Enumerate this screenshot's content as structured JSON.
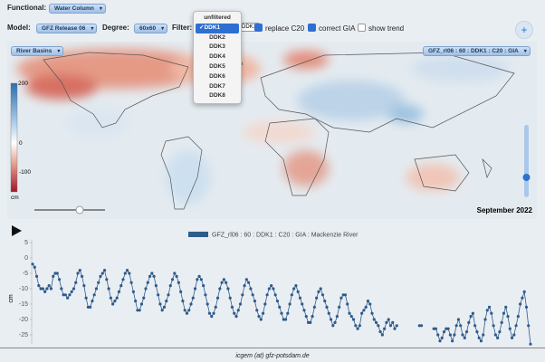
{
  "controls": {
    "functional_label": "Functional:",
    "functional_value": "Water Column",
    "model_label": "Model:",
    "model_value": "GFZ Release 06",
    "degree_label": "Degree:",
    "degree_value": "60x60",
    "filter_label": "Filter:",
    "filter_options": [
      "unfiltered",
      "DDK1",
      "DDK2",
      "DDK3",
      "DDK4",
      "DDK5",
      "DDK6",
      "DDK7",
      "DDK8"
    ],
    "filter_value": "DDK1",
    "replace_c20": "replace C20",
    "correct_gia": "correct GIA",
    "show_trend": "show trend",
    "add_button": "+"
  },
  "map": {
    "layer_select": "River Basins",
    "dataset_select": "GFZ_rl06 : 60 : DDK1 : C20 : GIA",
    "colorbar_ticks": [
      "200",
      "0",
      "-100"
    ],
    "colorbar_unit": "cm",
    "date": "September 2022"
  },
  "chart_data": {
    "type": "line",
    "ylabel": "cm",
    "ylim": [
      -28,
      6
    ],
    "yticks": [
      5,
      0,
      -5,
      -10,
      -15,
      -20,
      -25
    ],
    "grid": false,
    "legend": "top",
    "series": [
      {
        "name": "GFZ_rl06 : 60 : DDK1 : C20 : GIA : Mackenzie River",
        "color": "#2f5b8a",
        "values": [
          -2,
          -3,
          -6,
          -9,
          -10,
          -10,
          -11,
          -10,
          -9,
          -10,
          -6,
          -5,
          -5,
          -7,
          -10,
          -12,
          -12,
          -13,
          -12,
          -11,
          -10,
          -8,
          -5,
          -4,
          -6,
          -9,
          -13,
          -16,
          -16,
          -14,
          -12,
          -10,
          -8,
          -6,
          -5,
          -4,
          -7,
          -10,
          -13,
          -15,
          -14,
          -13,
          -11,
          -9,
          -7,
          -5,
          -4,
          -5,
          -8,
          -11,
          -14,
          -17,
          -17,
          -15,
          -13,
          -10,
          -8,
          -6,
          -5,
          -6,
          -9,
          -12,
          -15,
          -17,
          -16,
          -14,
          -12,
          -9,
          -7,
          -5,
          -6,
          -8,
          -11,
          -14,
          -17,
          -18,
          -17,
          -15,
          -13,
          -10,
          -7,
          -6,
          -7,
          -9,
          -12,
          -15,
          -18,
          -19,
          -18,
          -16,
          -13,
          -10,
          -8,
          -7,
          -8,
          -10,
          -13,
          -16,
          -18,
          -19,
          -17,
          -15,
          -12,
          -9,
          -7,
          -8,
          -10,
          -12,
          -14,
          -17,
          -19,
          -20,
          -18,
          -15,
          -12,
          -10,
          -9,
          -10,
          -12,
          -14,
          -16,
          -18,
          -20,
          -20,
          -18,
          -15,
          -12,
          -10,
          -9,
          -11,
          -13,
          -15,
          -17,
          -19,
          -21,
          -21,
          -19,
          -16,
          -13,
          -11,
          -10,
          -12,
          -14,
          -16,
          -18,
          -20,
          -22,
          -21,
          -19,
          -16,
          -13,
          -12,
          -12,
          -15,
          -18,
          -19,
          -20,
          -22,
          -23,
          -22,
          -18,
          -17,
          -16,
          -14,
          -15,
          -18,
          -20,
          -21,
          -22,
          -24,
          -25,
          -23,
          -21,
          -20,
          -22,
          -21,
          -23,
          -22,
          null,
          null,
          null,
          null,
          null,
          null,
          null,
          null,
          null,
          null,
          -22,
          -22,
          null,
          null,
          null,
          null,
          null,
          -23,
          -23,
          -25,
          -27,
          -26,
          -24,
          -23,
          -23,
          -25,
          -27,
          -25,
          -22,
          -20,
          -22,
          -25,
          -26,
          -24,
          -21,
          -19,
          -18,
          -22,
          -24,
          -26,
          -27,
          -25,
          -20,
          -17,
          -16,
          -18,
          -22,
          -25,
          -26,
          -24,
          -21,
          -18,
          -16,
          -19,
          -23,
          -26,
          -25,
          -22,
          -19,
          -15,
          -13,
          -11,
          -16,
          -22,
          -28
        ]
      }
    ]
  },
  "footer": "icgem (at) gfz-potsdam.de"
}
